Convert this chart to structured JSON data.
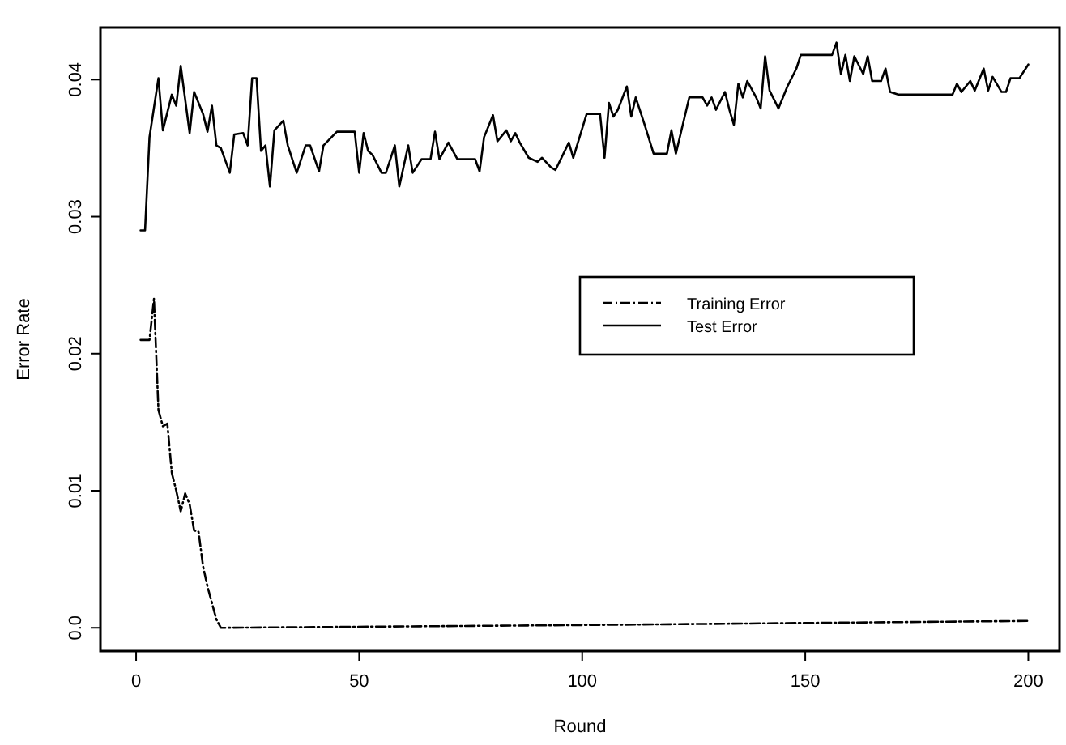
{
  "chart_data": {
    "type": "line",
    "xlabel": "Round",
    "ylabel": "Error Rate",
    "xlim": [
      -8,
      207
    ],
    "xticks": [
      0,
      50,
      100,
      150,
      200
    ],
    "ylim": [
      -0.0017,
      0.0438
    ],
    "yticks": [
      {
        "value": 0,
        "label": "0.0"
      },
      0.01,
      0.02,
      0.03,
      0.04
    ],
    "legend": "right",
    "grid": false,
    "marker": "none",
    "series": [
      {
        "name": "Training Error",
        "color": "#000000",
        "line_style": "dashed",
        "x": [
          1,
          3,
          4,
          5,
          6,
          7,
          8,
          9,
          10,
          11,
          12,
          13,
          14,
          15,
          16,
          17,
          18,
          19,
          100,
          200
        ],
        "values": [
          0.021,
          0.021,
          0.024,
          0.0159,
          0.0147,
          0.0149,
          0.0113,
          0.01,
          0.0085,
          0.0098,
          0.009,
          0.0071,
          0.007,
          0.0045,
          0.003,
          0.0018,
          0.0006,
          0,
          0.0002,
          0.0005
        ]
      },
      {
        "name": "Test Error",
        "color": "#000000",
        "line_style": "solid",
        "x": [
          1,
          2,
          3,
          5,
          6,
          8,
          9,
          10,
          12,
          13,
          15,
          16,
          17,
          18,
          19,
          21,
          22,
          24,
          25,
          26,
          27,
          28,
          29,
          30,
          31,
          33,
          34,
          36,
          38,
          39,
          41,
          42,
          45,
          49,
          50,
          51,
          52,
          53,
          55,
          56,
          58,
          59,
          61,
          62,
          64,
          66,
          67,
          68,
          70,
          72,
          76,
          77,
          78,
          80,
          81,
          83,
          84,
          85,
          86,
          88,
          90,
          91,
          93,
          94,
          97,
          98,
          101,
          104,
          105,
          106,
          107,
          108,
          110,
          111,
          112,
          114,
          116,
          119,
          120,
          121,
          124,
          127,
          128,
          129,
          130,
          132,
          133,
          134,
          135,
          136,
          137,
          139,
          140,
          141,
          142,
          144,
          146,
          148,
          149,
          156,
          157,
          158,
          159,
          160,
          161,
          163,
          164,
          165,
          167,
          168,
          169,
          171,
          183,
          184,
          185,
          187,
          188,
          190,
          191,
          192,
          194,
          195,
          196,
          198,
          200
        ],
        "values": [
          0.029,
          0.029,
          0.0358,
          0.0401,
          0.0363,
          0.0389,
          0.0381,
          0.041,
          0.0361,
          0.0391,
          0.0375,
          0.0362,
          0.0381,
          0.0352,
          0.035,
          0.0332,
          0.036,
          0.0361,
          0.0352,
          0.0401,
          0.0401,
          0.0348,
          0.0352,
          0.0322,
          0.0363,
          0.037,
          0.0352,
          0.0332,
          0.0352,
          0.0352,
          0.0333,
          0.0352,
          0.0362,
          0.0362,
          0.0332,
          0.0361,
          0.0348,
          0.0345,
          0.0332,
          0.0332,
          0.0352,
          0.0322,
          0.0352,
          0.0332,
          0.0342,
          0.0342,
          0.0362,
          0.0342,
          0.0354,
          0.0342,
          0.0342,
          0.0333,
          0.0358,
          0.0374,
          0.0355,
          0.0363,
          0.0355,
          0.0361,
          0.0354,
          0.0343,
          0.034,
          0.0343,
          0.0336,
          0.0334,
          0.0354,
          0.0343,
          0.0375,
          0.0375,
          0.0343,
          0.0383,
          0.0373,
          0.0378,
          0.0395,
          0.0373,
          0.0387,
          0.0367,
          0.0346,
          0.0346,
          0.0363,
          0.0346,
          0.0387,
          0.0387,
          0.0381,
          0.0387,
          0.0378,
          0.0391,
          0.0378,
          0.0367,
          0.0397,
          0.0387,
          0.0399,
          0.0387,
          0.0379,
          0.0417,
          0.0392,
          0.0379,
          0.0395,
          0.0408,
          0.0418,
          0.0418,
          0.0427,
          0.0404,
          0.0418,
          0.0399,
          0.0417,
          0.0404,
          0.0417,
          0.0399,
          0.0399,
          0.0408,
          0.0391,
          0.0389,
          0.0389,
          0.0397,
          0.0391,
          0.0399,
          0.0392,
          0.0408,
          0.0392,
          0.0402,
          0.0391,
          0.0391,
          0.0401,
          0.0401,
          0.0411
        ]
      }
    ]
  }
}
